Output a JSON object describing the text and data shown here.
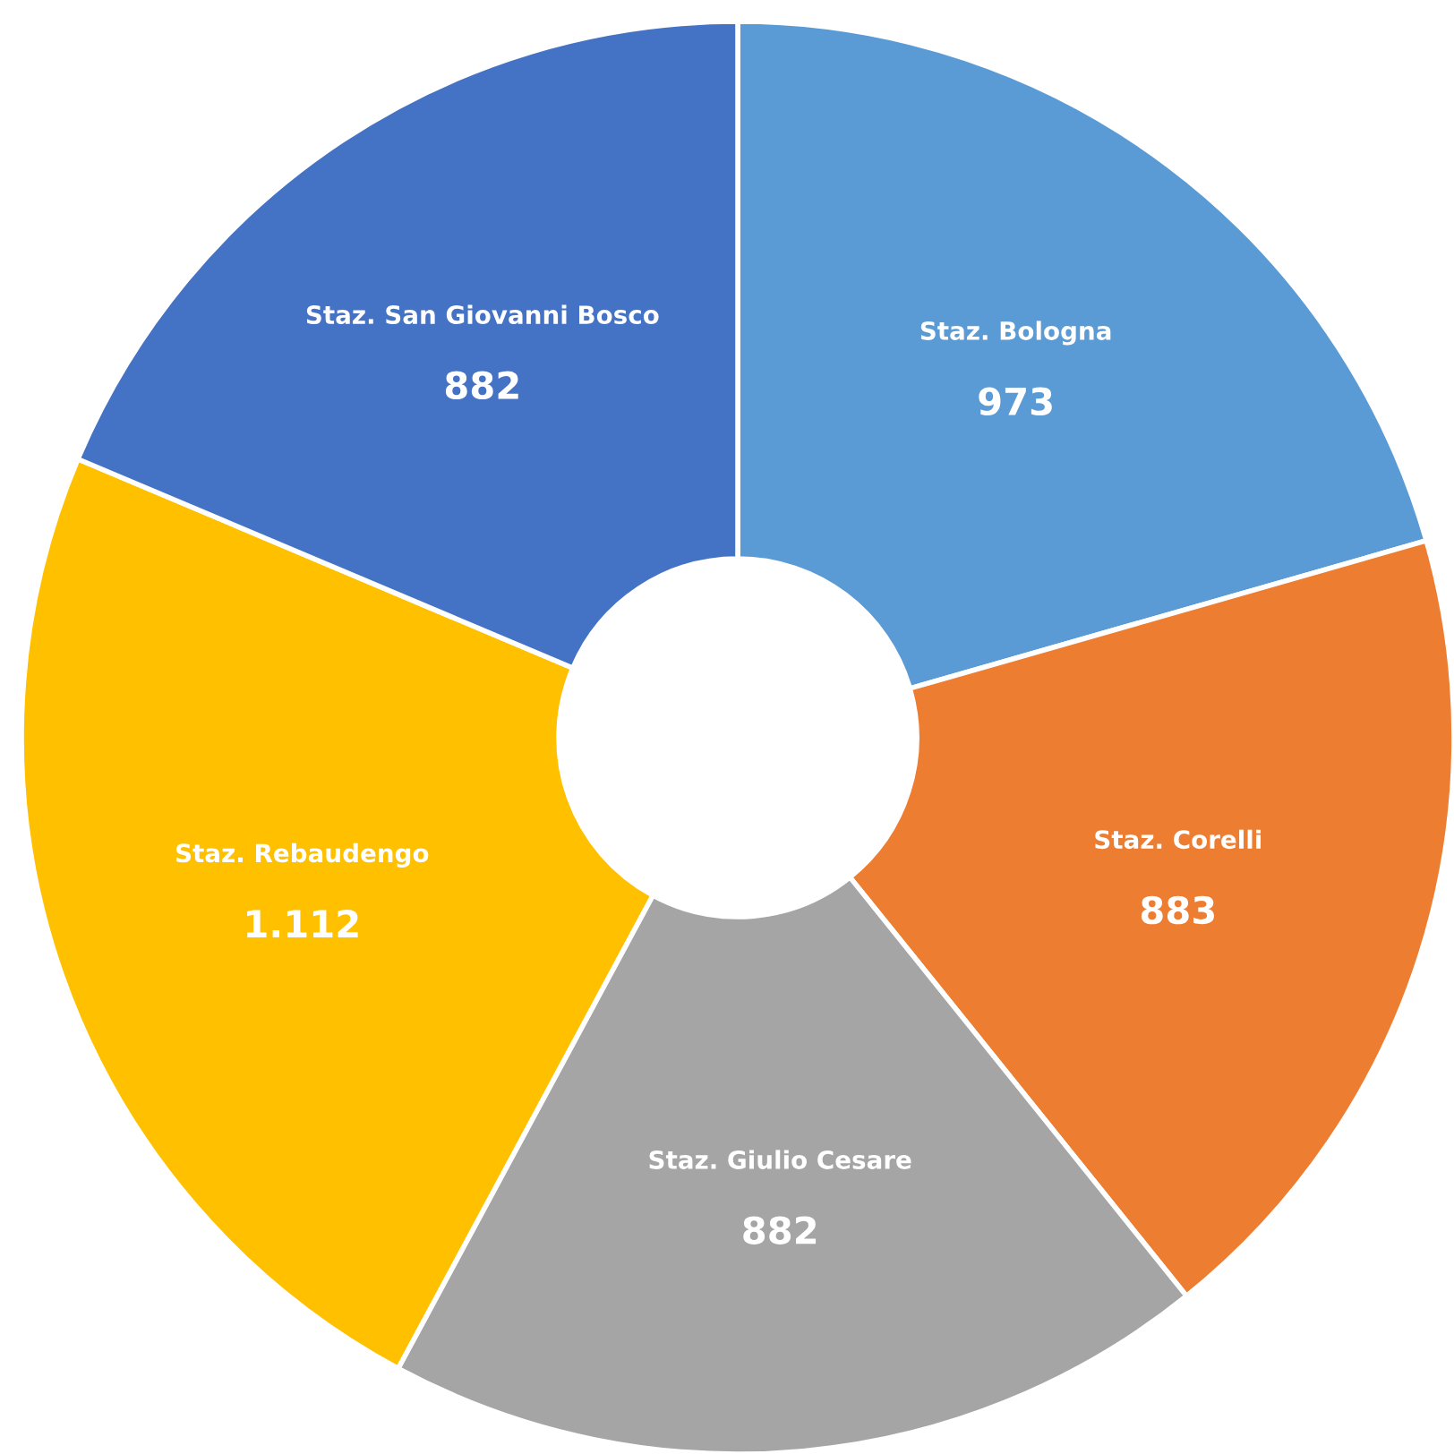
{
  "chart_data": {
    "type": "donut",
    "categories": [
      "Staz. Bologna",
      "Staz. Corelli",
      "Staz. Giulio Cesare",
      "Staz. Rebaudengo",
      "Staz. San Giovanni Bosco"
    ],
    "values": [
      973,
      883,
      882,
      1112,
      882
    ],
    "value_labels": [
      "973",
      "883",
      "882",
      "1.112",
      "882"
    ],
    "colors": [
      "#5b9bd5",
      "#ed7d31",
      "#a5a5a5",
      "#ffc000",
      "#4472c4"
    ],
    "legend": false
  }
}
